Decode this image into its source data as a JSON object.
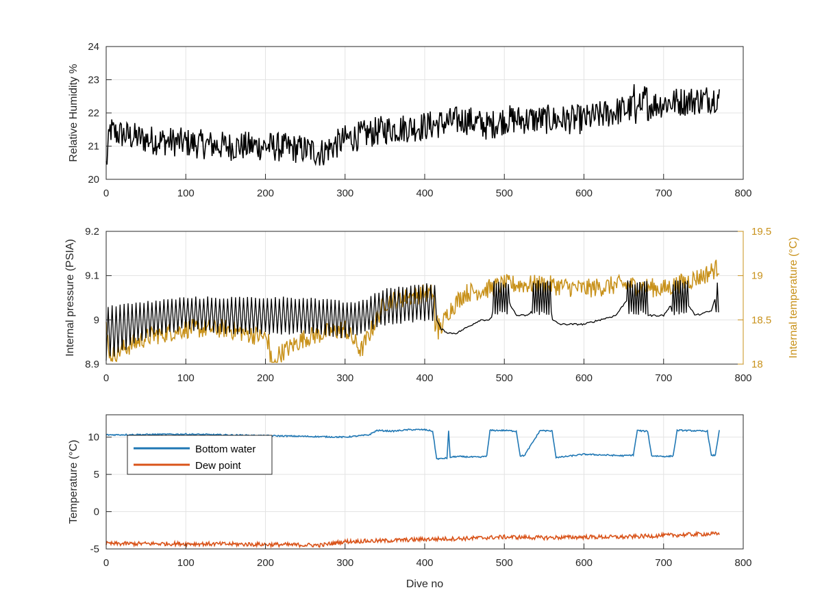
{
  "colors": {
    "humidity": "#000000",
    "pressure": "#000000",
    "internal_temperature": "#c8911a",
    "bottom_water": "#1f77b4",
    "dew_point": "#d95319",
    "grid": "#e3e3e3",
    "axes": "#262626"
  },
  "chart_data": [
    {
      "type": "line",
      "title": "",
      "xlabel": "",
      "ylabel": "Relative Humidity %",
      "xlim": [
        0,
        800
      ],
      "ylim": [
        20,
        24
      ],
      "grid": true,
      "x_ticks": [
        "0",
        "100",
        "200",
        "300",
        "400",
        "500",
        "600",
        "700",
        "800"
      ],
      "y_ticks": [
        "20",
        "21",
        "22",
        "23",
        "24"
      ],
      "series": [
        {
          "color": "#000000",
          "style": "noisy, range about +-0.45",
          "x": [
            0,
            5,
            10,
            50,
            100,
            150,
            200,
            250,
            270,
            300,
            350,
            400,
            450,
            480,
            500,
            550,
            600,
            650,
            700,
            750,
            770
          ],
          "y": [
            20.4,
            21.5,
            21.4,
            21.2,
            21.1,
            21.0,
            21.0,
            20.9,
            20.8,
            21.2,
            21.5,
            21.6,
            21.8,
            21.6,
            21.8,
            21.8,
            21.8,
            22.1,
            22.3,
            22.4,
            22.5
          ]
        }
      ]
    },
    {
      "type": "line",
      "title": "",
      "xlabel": "",
      "ylabel": "Internal pressure (PSIA)",
      "y2label": "Internal temperature (°C)",
      "xlim": [
        0,
        800
      ],
      "ylim": [
        8.9,
        9.2
      ],
      "y2lim": [
        18,
        19.5
      ],
      "grid": true,
      "x_ticks": [
        "0",
        "100",
        "200",
        "300",
        "400",
        "500",
        "600",
        "700",
        "800"
      ],
      "y_ticks": [
        "8.9",
        "9",
        "9.1",
        "9.2"
      ],
      "y2_ticks": [
        "18",
        "18.5",
        "19",
        "19.5"
      ],
      "series": [
        {
          "axis": "left",
          "color": "#000000",
          "style": "oscillating band between bounds up to dive 420, then stepped",
          "x": [
            0,
            50,
            100,
            150,
            200,
            250,
            300,
            320,
            350,
            400,
            415
          ],
          "lower": [
            8.91,
            8.96,
            8.98,
            8.97,
            8.97,
            8.97,
            8.96,
            8.97,
            8.99,
            9.0,
            9.0
          ],
          "upper": [
            9.03,
            9.04,
            9.05,
            9.05,
            9.05,
            9.05,
            9.04,
            9.04,
            9.07,
            9.08,
            9.08
          ]
        },
        {
          "axis": "left",
          "color": "#000000",
          "style": "stepped after dive 415",
          "x": [
            415,
            420,
            430,
            440,
            450,
            460,
            470,
            480,
            490,
            500,
            515,
            530,
            550,
            560,
            570,
            600,
            620,
            640,
            660,
            680,
            700,
            720,
            740,
            760,
            770
          ],
          "y": [
            9.0,
            8.98,
            8.97,
            8.97,
            8.98,
            8.99,
            9.0,
            9.0,
            9.01,
            9.06,
            9.01,
            9.01,
            9.06,
            9.0,
            8.99,
            8.99,
            9.0,
            9.01,
            9.06,
            9.01,
            9.01,
            9.06,
            9.01,
            9.02,
            9.08
          ]
        },
        {
          "axis": "right",
          "color": "#c8911a",
          "style": "noisy",
          "x": [
            0,
            5,
            50,
            100,
            150,
            200,
            215,
            250,
            300,
            320,
            350,
            400,
            410,
            420,
            430,
            450,
            480,
            500,
            550,
            600,
            650,
            700,
            750,
            770
          ],
          "y": [
            18.4,
            18.1,
            18.3,
            18.4,
            18.4,
            18.3,
            18.1,
            18.3,
            18.4,
            18.15,
            18.7,
            18.8,
            18.8,
            18.4,
            18.6,
            18.8,
            18.85,
            18.9,
            18.9,
            18.85,
            18.9,
            18.85,
            19.0,
            19.1
          ]
        }
      ]
    },
    {
      "type": "line",
      "title": "",
      "xlabel": "Dive no",
      "ylabel": "Temperature (°C)",
      "xlim": [
        0,
        800
      ],
      "ylim": [
        -5,
        13
      ],
      "grid": true,
      "legend": "top-left",
      "x_ticks": [
        "0",
        "100",
        "200",
        "300",
        "400",
        "500",
        "600",
        "700",
        "800"
      ],
      "y_ticks": [
        "-5",
        "0",
        "5",
        "10"
      ],
      "series": [
        {
          "name": "Bottom water",
          "color": "#1f77b4",
          "x": [
            0,
            100,
            200,
            300,
            330,
            340,
            360,
            380,
            400,
            410,
            415,
            420,
            428,
            430,
            432,
            440,
            470,
            478,
            482,
            500,
            515,
            520,
            525,
            545,
            560,
            565,
            570,
            600,
            650,
            662,
            667,
            675,
            680,
            685,
            705,
            712,
            717,
            725,
            755,
            760,
            765,
            770
          ],
          "y": [
            10.3,
            10.4,
            10.2,
            10.0,
            10.3,
            10.9,
            10.8,
            11.0,
            11.0,
            10.8,
            7.1,
            7.1,
            7.2,
            10.8,
            7.3,
            7.4,
            7.3,
            7.5,
            10.9,
            10.9,
            10.8,
            7.5,
            7.5,
            10.9,
            10.8,
            7.3,
            7.3,
            7.7,
            7.5,
            7.6,
            10.9,
            10.8,
            10.8,
            7.5,
            7.4,
            7.5,
            10.9,
            10.9,
            10.8,
            7.5,
            7.6,
            11.0
          ]
        },
        {
          "name": "Dew point",
          "color": "#d95319",
          "x": [
            0,
            100,
            200,
            270,
            300,
            350,
            400,
            450,
            500,
            550,
            600,
            650,
            700,
            750,
            770
          ],
          "y": [
            -4.3,
            -4.3,
            -4.4,
            -4.5,
            -4.0,
            -3.9,
            -3.7,
            -3.6,
            -3.4,
            -3.5,
            -3.4,
            -3.4,
            -3.2,
            -3.0,
            -3.0
          ]
        }
      ]
    }
  ]
}
